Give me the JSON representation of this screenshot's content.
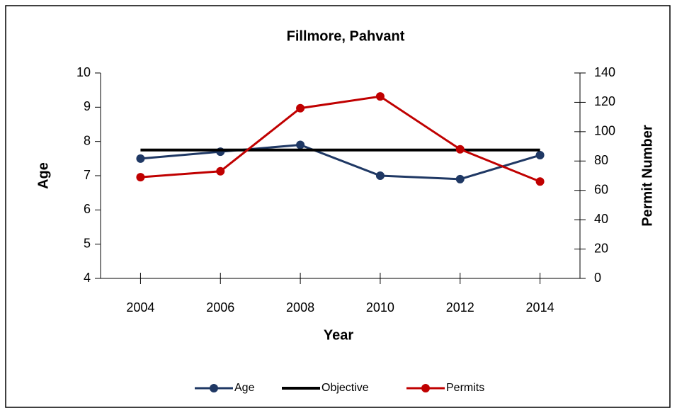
{
  "chart_data": {
    "type": "line",
    "title": "Fillmore, Pahvant",
    "categories": [
      "2004",
      "2006",
      "2008",
      "2010",
      "2012",
      "2014"
    ],
    "x_label": "Year",
    "y_label": "Age",
    "y2_label": "Permit Number",
    "ylim": [
      4,
      10
    ],
    "yticks": [
      4,
      5,
      6,
      7,
      8,
      9,
      10
    ],
    "y2lim": [
      0,
      140
    ],
    "y2ticks": [
      0,
      20,
      40,
      60,
      80,
      100,
      120,
      140
    ],
    "series": [
      {
        "name": "Age",
        "color": "#1f3864",
        "values": [
          7.5,
          7.7,
          7.9,
          7.0,
          6.9,
          7.6
        ],
        "markers": true
      },
      {
        "name": "Objective",
        "color": "#000000",
        "values": [
          7.75,
          7.75,
          7.75,
          7.75,
          7.75,
          7.75
        ],
        "markers": false
      },
      {
        "name": "Permits",
        "color": "#c00000",
        "values": [
          69,
          73,
          116,
          124,
          88,
          66
        ],
        "axis": "y2",
        "markers": true
      }
    ],
    "legend": "bottom"
  }
}
